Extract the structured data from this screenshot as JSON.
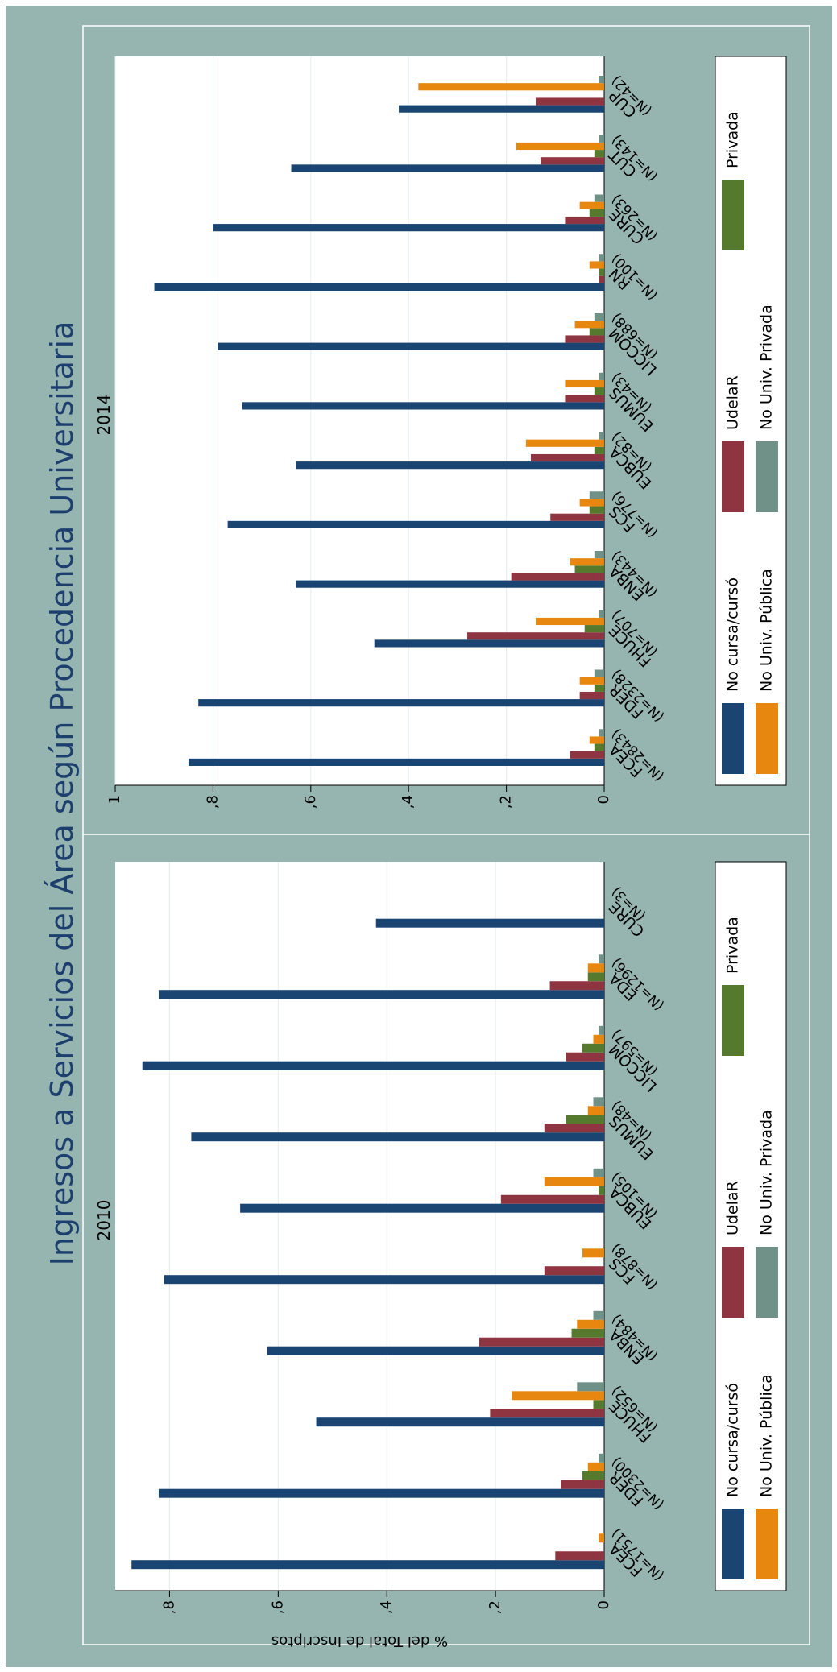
{
  "title": "Ingresos a Servicios del Área según Procedencia Universitaria",
  "colors": {
    "background": "#96b5b0",
    "plot": "#ffffff",
    "grid": "#e6eceb",
    "axis": "#000000",
    "title_text": "#1c3f6e",
    "No cursa/cursó": "#1a4472",
    "UdelaR": "#8e3541",
    "Privada": "#557a2e",
    "No Univ. Pública": "#e8870f",
    "No Univ. Privada": "#6f9188"
  },
  "chart_data": [
    {
      "type": "bar",
      "title": "2010",
      "ylabel": "% del Total de Inscriptos",
      "ylim": [
        0,
        0.9
      ],
      "yticks": [
        0,
        0.2,
        0.4,
        0.6,
        0.8
      ],
      "ytick_labels": [
        "0",
        ",2",
        ",4",
        ",6",
        ",8"
      ],
      "categories": [
        "FCEA",
        "FDER",
        "FHUCE",
        "ENBA",
        "FCS",
        "EUBCA",
        "EUMUS",
        "LICCOM",
        "EDA",
        "CURE"
      ],
      "category_n": [
        "(N=1751)",
        "(N=2300)",
        "(N=652)",
        "(N=484)",
        "(N=878)",
        "(N=105)",
        "(N=48)",
        "(N=597)",
        "(N=1296)",
        "(N=3)"
      ],
      "series": [
        {
          "name": "No cursa/cursó",
          "values": [
            0.87,
            0.82,
            0.53,
            0.62,
            0.81,
            0.67,
            0.76,
            0.85,
            0.82,
            0.42
          ]
        },
        {
          "name": "UdelaR",
          "values": [
            0.09,
            0.08,
            0.21,
            0.23,
            0.11,
            0.19,
            0.11,
            0.07,
            0.1,
            0.0
          ]
        },
        {
          "name": "Privada",
          "values": [
            0.0,
            0.04,
            0.02,
            0.06,
            0.0,
            0.01,
            0.07,
            0.04,
            0.03,
            0.0
          ]
        },
        {
          "name": "No Univ. Pública",
          "values": [
            0.01,
            0.03,
            0.17,
            0.05,
            0.04,
            0.11,
            0.03,
            0.02,
            0.03,
            0.0
          ]
        },
        {
          "name": "No Univ. Privada",
          "values": [
            0.0,
            0.01,
            0.05,
            0.02,
            0.0,
            0.02,
            0.02,
            0.01,
            0.01,
            0.0
          ]
        }
      ]
    },
    {
      "type": "bar",
      "title": "2014",
      "ylabel": "",
      "ylim": [
        0,
        1.0
      ],
      "yticks": [
        0,
        0.2,
        0.4,
        0.6,
        0.8,
        1.0
      ],
      "ytick_labels": [
        "0",
        ",2",
        ",4",
        ",6",
        ",8",
        "1"
      ],
      "categories": [
        "FCEA",
        "FDER",
        "FHUCE",
        "ENBA",
        "FCS",
        "EUBCA",
        "EUMUS",
        "LICCOM",
        "RN",
        "CURE",
        "CUT",
        "CUP"
      ],
      "category_n": [
        "(N=2843)",
        "(N=2328)",
        "(N=707)",
        "(N=443)",
        "(N=776)",
        "(N=82)",
        "(N=43)",
        "(N=688)",
        "(N=100)",
        "(N=263)",
        "(N=143)",
        "(N=42)"
      ],
      "series": [
        {
          "name": "No cursa/cursó",
          "values": [
            0.85,
            0.83,
            0.47,
            0.63,
            0.77,
            0.63,
            0.74,
            0.79,
            0.92,
            0.8,
            0.64,
            0.42
          ]
        },
        {
          "name": "UdelaR",
          "values": [
            0.07,
            0.05,
            0.28,
            0.19,
            0.11,
            0.15,
            0.08,
            0.08,
            0.01,
            0.08,
            0.13,
            0.14
          ]
        },
        {
          "name": "Privada",
          "values": [
            0.02,
            0.02,
            0.04,
            0.06,
            0.03,
            0.02,
            0.02,
            0.03,
            0.01,
            0.03,
            0.02,
            0.0
          ]
        },
        {
          "name": "No Univ. Pública",
          "values": [
            0.03,
            0.05,
            0.14,
            0.07,
            0.05,
            0.16,
            0.08,
            0.06,
            0.03,
            0.05,
            0.18,
            0.38
          ]
        },
        {
          "name": "No Univ. Privada",
          "values": [
            0.01,
            0.02,
            0.01,
            0.02,
            0.03,
            0.01,
            0.01,
            0.02,
            0.01,
            0.02,
            0.01,
            0.01
          ]
        }
      ]
    }
  ],
  "legend": {
    "items": [
      "No cursa/cursó",
      "UdelaR",
      "Privada",
      "No Univ. Pública",
      "No Univ. Privada"
    ]
  }
}
